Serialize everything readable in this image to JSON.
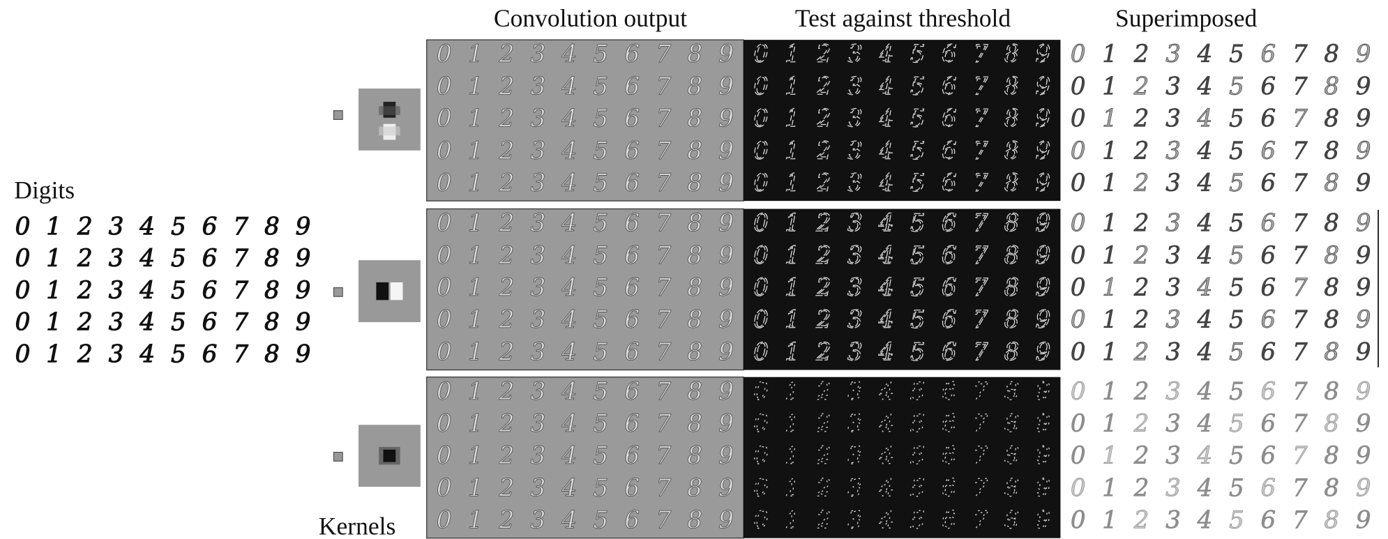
{
  "figure": {
    "headers": [
      "Convolution output",
      "Test against threshold",
      "Superimposed"
    ],
    "digits_label": "Digits",
    "kernels_label": "Kernels",
    "digits": [
      "0",
      "1",
      "2",
      "3",
      "4",
      "5",
      "6",
      "7",
      "8",
      "9"
    ]
  }
}
